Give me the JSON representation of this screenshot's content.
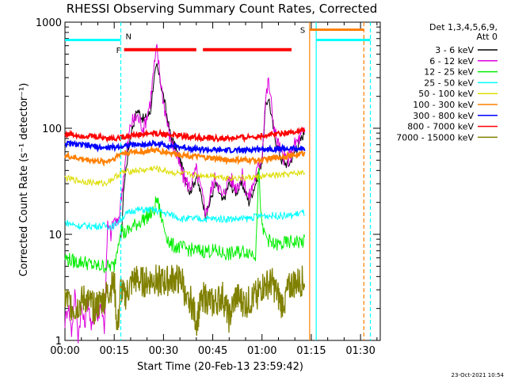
{
  "chart_data": {
    "type": "line",
    "title": "RHESSI Observing Summary Count Rates, Corrected",
    "xlabel": "Start Time (20-Feb-13 23:59:42)",
    "ylabel": "Corrected Count Rate (s⁻¹ detector⁻¹)",
    "yscale": "log",
    "ylim": [
      1,
      1000
    ],
    "xlim_minutes": [
      0,
      96
    ],
    "x_ticks": [
      {
        "min": 0,
        "label": "00:00"
      },
      {
        "min": 15,
        "label": "00:15"
      },
      {
        "min": 30,
        "label": "00:30"
      },
      {
        "min": 45,
        "label": "00:45"
      },
      {
        "min": 60,
        "label": "01:00"
      },
      {
        "min": 75,
        "label": "01:15"
      },
      {
        "min": 90,
        "label": "01:30"
      }
    ],
    "y_ticks": [
      {
        "value": 1,
        "label": "1"
      },
      {
        "value": 10,
        "label": "10"
      },
      {
        "value": 100,
        "label": "100"
      },
      {
        "value": 1000,
        "label": "1000"
      }
    ],
    "legend_header": [
      "Det 1,3,4,5,6,9,",
      "Att 0"
    ],
    "series": [
      {
        "name": "3 - 6 keV",
        "color": "#000000",
        "x": [
          17,
          18,
          20,
          22,
          24,
          26,
          27,
          28,
          29,
          30,
          32,
          34,
          36,
          38,
          40,
          42,
          43,
          45,
          46,
          48,
          50,
          52,
          54,
          56,
          58,
          60,
          61,
          62,
          63,
          64,
          66,
          68,
          70,
          72,
          73
        ],
        "y": [
          8,
          30,
          90,
          150,
          120,
          140,
          280,
          380,
          280,
          200,
          90,
          60,
          40,
          25,
          35,
          20,
          15,
          25,
          30,
          20,
          30,
          25,
          30,
          20,
          30,
          50,
          150,
          200,
          120,
          80,
          50,
          45,
          60,
          80,
          95
        ]
      },
      {
        "name": "6 - 12 keV",
        "color": "#dd00dd",
        "x": [
          0,
          1,
          2,
          3,
          4,
          5,
          6,
          7,
          8,
          9,
          10,
          11,
          12,
          13,
          14,
          15,
          16,
          17,
          18,
          20,
          22,
          24,
          26,
          27,
          28,
          29,
          30,
          32,
          34,
          36,
          38,
          40,
          42,
          43,
          45,
          46,
          48,
          50,
          52,
          54,
          56,
          58,
          60,
          61,
          62,
          63,
          64,
          66,
          68,
          70,
          72,
          73
        ],
        "y": [
          1.5,
          2.2,
          1.2,
          2.8,
          1.1,
          2.0,
          1.4,
          2.5,
          1.2,
          2.1,
          1.6,
          2.3,
          1.3,
          12,
          10,
          14,
          12,
          20,
          40,
          110,
          130,
          100,
          180,
          350,
          560,
          300,
          180,
          80,
          55,
          35,
          28,
          40,
          22,
          16,
          30,
          35,
          22,
          35,
          28,
          35,
          22,
          35,
          55,
          180,
          280,
          150,
          90,
          55,
          50,
          70,
          85,
          90
        ]
      },
      {
        "name": "12 - 25 keV",
        "color": "#00ee00",
        "x": [
          0,
          3,
          6,
          9,
          12,
          15,
          17,
          18,
          21,
          24,
          27,
          28,
          29,
          30,
          32,
          35,
          40,
          45,
          50,
          55,
          58,
          59,
          60,
          63,
          66,
          69,
          72,
          73
        ],
        "y": [
          6,
          5.5,
          5.5,
          5,
          5,
          5,
          12,
          10,
          12,
          14,
          16,
          22,
          16,
          12,
          8,
          7.5,
          7,
          7,
          6.5,
          7,
          6.5,
          40,
          11,
          8,
          8,
          8.5,
          8.5,
          8.5
        ]
      },
      {
        "name": "25 - 50 keV",
        "color": "#00ffff",
        "x": [
          0,
          4,
          8,
          12,
          15,
          16,
          18,
          21,
          24,
          27,
          30,
          33,
          36,
          40,
          45,
          50,
          55,
          60,
          63,
          66,
          69,
          72,
          73
        ],
        "y": [
          13,
          12,
          12,
          12,
          12,
          13,
          15,
          17,
          17,
          17,
          16,
          15,
          14,
          14,
          14,
          14,
          14,
          15,
          15,
          15,
          15,
          16,
          16
        ]
      },
      {
        "name": "50 - 100 keV",
        "color": "#dddd00",
        "x": [
          0,
          4,
          8,
          12,
          15,
          17,
          21,
          24,
          27,
          30,
          33,
          36,
          40,
          45,
          50,
          55,
          60,
          63,
          66,
          69,
          72,
          73
        ],
        "y": [
          34,
          32,
          31,
          30,
          34,
          38,
          40,
          40,
          42,
          40,
          38,
          37,
          36,
          36,
          34,
          34,
          35,
          36,
          36,
          37,
          38,
          38
        ]
      },
      {
        "name": "100 - 300 keV",
        "color": "#ff8000",
        "x": [
          0,
          4,
          8,
          12,
          15,
          17,
          21,
          24,
          27,
          30,
          33,
          36,
          40,
          45,
          50,
          55,
          60,
          63,
          66,
          69,
          72,
          73
        ],
        "y": [
          55,
          52,
          50,
          48,
          52,
          58,
          60,
          60,
          62,
          60,
          58,
          56,
          54,
          52,
          50,
          50,
          50,
          52,
          54,
          55,
          58,
          58
        ]
      },
      {
        "name": "300 - 800 keV",
        "color": "#0000ff",
        "x": [
          0,
          4,
          8,
          12,
          15,
          17,
          21,
          24,
          27,
          30,
          33,
          36,
          40,
          45,
          50,
          55,
          60,
          63,
          66,
          69,
          72,
          73
        ],
        "y": [
          72,
          70,
          68,
          65,
          66,
          68,
          70,
          70,
          72,
          70,
          68,
          66,
          64,
          62,
          62,
          62,
          64,
          64,
          64,
          64,
          64,
          64
        ]
      },
      {
        "name": "800 - 7000 keV",
        "color": "#ff0000",
        "x": [
          0,
          4,
          8,
          12,
          15,
          17,
          21,
          24,
          27,
          30,
          33,
          36,
          40,
          45,
          50,
          55,
          60,
          63,
          66,
          69,
          72,
          73
        ],
        "y": [
          88,
          86,
          84,
          82,
          80,
          82,
          86,
          88,
          90,
          88,
          86,
          84,
          82,
          80,
          80,
          82,
          85,
          88,
          90,
          92,
          95,
          95
        ]
      },
      {
        "name": "7000 - 15000 keV",
        "color": "#808000",
        "x": [
          0,
          3,
          6,
          9,
          12,
          15,
          16,
          17,
          18,
          21,
          24,
          27,
          30,
          33,
          36,
          37,
          38,
          40,
          42,
          45,
          48,
          50,
          52,
          55,
          58,
          60,
          63,
          66,
          69,
          72,
          73
        ],
        "y": [
          2.5,
          2.0,
          2.5,
          2.0,
          2.5,
          3.5,
          1.2,
          3.2,
          2.5,
          3.8,
          3.5,
          3.8,
          3.5,
          3.8,
          3.6,
          2.0,
          2.6,
          1.5,
          2.6,
          2.2,
          2.6,
          1.6,
          2.6,
          2.2,
          2.6,
          3.2,
          3.5,
          2.2,
          3.4,
          3.6,
          3.6
        ]
      }
    ],
    "annotations": {
      "flare_flag": {
        "label": "F",
        "color": "#ff0000",
        "y": 550,
        "segments": [
          [
            18,
            40
          ],
          [
            42,
            69
          ]
        ]
      },
      "saa_flag": {
        "label": "S",
        "color": "#ff8000",
        "y": 850,
        "start": 74.5,
        "end": 91
      },
      "night_flag": {
        "label": "N",
        "color": "#00ffff",
        "y": 680,
        "segments": [
          [
            0,
            17
          ],
          [
            76.5,
            93
          ]
        ]
      },
      "vertical_lines": [
        {
          "min": 17,
          "color": "#00ffff",
          "style": "dashed"
        },
        {
          "min": 74.5,
          "color": "#ff8000",
          "style": "solid"
        },
        {
          "min": 76.5,
          "color": "#00ffff",
          "style": "solid"
        },
        {
          "min": 91,
          "color": "#ff8000",
          "style": "dashed"
        },
        {
          "min": 93,
          "color": "#00ffff",
          "style": "dashed"
        }
      ]
    },
    "footer": "23-Oct-2021 10:54"
  }
}
